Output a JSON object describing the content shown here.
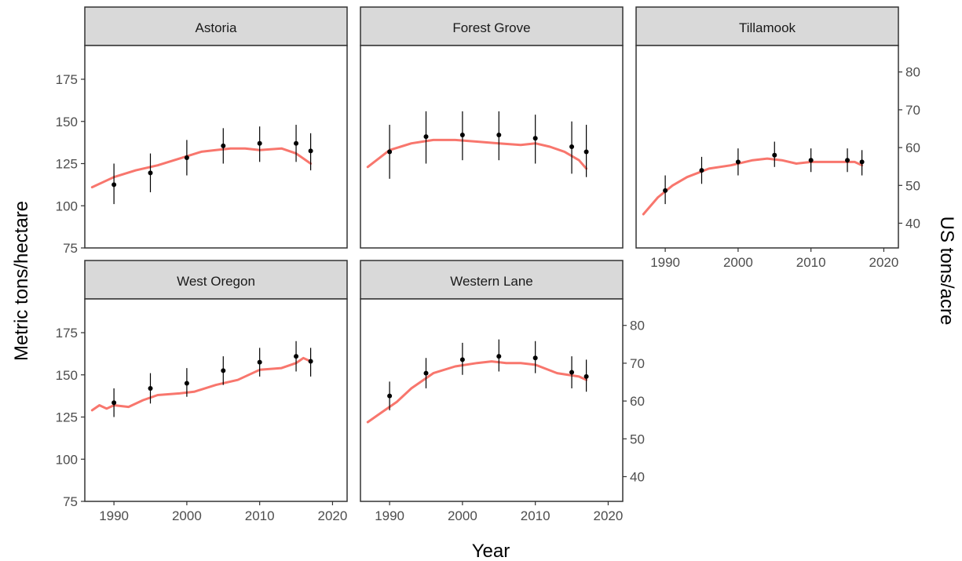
{
  "chart_data": {
    "type": "line",
    "xlabel": "Year",
    "ylabel": "Metric tons/hectare",
    "ylabel_secondary": "US tons/acre",
    "xlim": [
      1986,
      2022
    ],
    "ylim": [
      75,
      195
    ],
    "ylim_secondary": [
      33.46,
      87.0
    ],
    "x_ticks": [
      1990,
      2000,
      2010,
      2020
    ],
    "y_ticks": [
      75,
      100,
      125,
      150,
      175
    ],
    "y_ticks_secondary": [
      40,
      50,
      60,
      70,
      80
    ],
    "colors": {
      "line": "#f8766d",
      "points": "#000000",
      "strip": "#d9d9d9",
      "border": "#333333"
    },
    "panels": [
      {
        "title": "Astoria",
        "line": {
          "x": [
            1987,
            1990,
            1993,
            1996,
            1999,
            2002,
            2004,
            2006,
            2008,
            2010,
            2013,
            2015,
            2017
          ],
          "y": [
            111,
            117,
            121,
            124,
            128,
            132,
            133,
            134,
            134,
            133,
            134,
            131,
            125
          ]
        },
        "points": [
          {
            "x": 1990,
            "y": 112.5,
            "lo": 101,
            "hi": 125
          },
          {
            "x": 1995,
            "y": 119.5,
            "lo": 108,
            "hi": 131
          },
          {
            "x": 2000,
            "y": 128.5,
            "lo": 118,
            "hi": 139
          },
          {
            "x": 2005,
            "y": 135.5,
            "lo": 125,
            "hi": 146
          },
          {
            "x": 2010,
            "y": 137,
            "lo": 126,
            "hi": 147
          },
          {
            "x": 2015,
            "y": 137,
            "lo": 126,
            "hi": 148
          },
          {
            "x": 2017,
            "y": 132.5,
            "lo": 121,
            "hi": 143
          }
        ]
      },
      {
        "title": "Forest Grove",
        "line": {
          "x": [
            1987,
            1990,
            1993,
            1996,
            1999,
            2002,
            2005,
            2008,
            2010,
            2012,
            2014,
            2016,
            2017
          ],
          "y": [
            123,
            133,
            137,
            139,
            139,
            138,
            137,
            136,
            137,
            135,
            132,
            127,
            122
          ]
        },
        "points": [
          {
            "x": 1990,
            "y": 132,
            "lo": 116,
            "hi": 148
          },
          {
            "x": 1995,
            "y": 141,
            "lo": 125,
            "hi": 156
          },
          {
            "x": 2000,
            "y": 142,
            "lo": 127,
            "hi": 156
          },
          {
            "x": 2005,
            "y": 142,
            "lo": 127,
            "hi": 156
          },
          {
            "x": 2010,
            "y": 140,
            "lo": 125,
            "hi": 154
          },
          {
            "x": 2015,
            "y": 135,
            "lo": 119,
            "hi": 150
          },
          {
            "x": 2017,
            "y": 132,
            "lo": 117,
            "hi": 148
          }
        ]
      },
      {
        "title": "Tillamook",
        "line": {
          "x": [
            1987,
            1989,
            1991,
            1993,
            1996,
            1999,
            2002,
            2004,
            2006,
            2008,
            2010,
            2013,
            2016,
            2017
          ],
          "y": [
            95,
            105,
            112,
            117,
            122,
            124,
            127,
            128,
            127,
            125,
            126,
            126,
            126,
            124
          ]
        },
        "points": [
          {
            "x": 1990,
            "y": 109,
            "lo": 101,
            "hi": 118
          },
          {
            "x": 1995,
            "y": 121,
            "lo": 113,
            "hi": 129
          },
          {
            "x": 2000,
            "y": 126,
            "lo": 118,
            "hi": 134
          },
          {
            "x": 2005,
            "y": 130,
            "lo": 123,
            "hi": 138
          },
          {
            "x": 2010,
            "y": 127,
            "lo": 120,
            "hi": 134
          },
          {
            "x": 2015,
            "y": 127,
            "lo": 120,
            "hi": 134
          },
          {
            "x": 2017,
            "y": 126,
            "lo": 118,
            "hi": 133
          }
        ]
      },
      {
        "title": "West Oregon",
        "line": {
          "x": [
            1987,
            1988,
            1989,
            1990,
            1992,
            1994,
            1996,
            1999,
            2001,
            2004,
            2007,
            2010,
            2013,
            2015,
            2016,
            2017
          ],
          "y": [
            129,
            132,
            130,
            132,
            131,
            135,
            138,
            139,
            140,
            144,
            147,
            153,
            154,
            157,
            160,
            158
          ]
        },
        "points": [
          {
            "x": 1990,
            "y": 133.5,
            "lo": 125,
            "hi": 142
          },
          {
            "x": 1995,
            "y": 142,
            "lo": 133,
            "hi": 151
          },
          {
            "x": 2000,
            "y": 145,
            "lo": 137,
            "hi": 154
          },
          {
            "x": 2005,
            "y": 152.5,
            "lo": 144,
            "hi": 161
          },
          {
            "x": 2010,
            "y": 157.5,
            "lo": 149,
            "hi": 166
          },
          {
            "x": 2015,
            "y": 161,
            "lo": 152,
            "hi": 170
          },
          {
            "x": 2017,
            "y": 158,
            "lo": 149,
            "hi": 166
          }
        ]
      },
      {
        "title": "Western Lane",
        "line": {
          "x": [
            1987,
            1989,
            1991,
            1993,
            1996,
            1999,
            2002,
            2004,
            2006,
            2008,
            2010,
            2013,
            2016,
            2017
          ],
          "y": [
            122,
            128,
            134,
            142,
            151,
            155,
            157,
            158,
            157,
            157,
            156,
            151,
            149,
            147
          ]
        },
        "points": [
          {
            "x": 1990,
            "y": 137.5,
            "lo": 129,
            "hi": 146
          },
          {
            "x": 1995,
            "y": 151,
            "lo": 142,
            "hi": 160
          },
          {
            "x": 2000,
            "y": 159,
            "lo": 150,
            "hi": 169
          },
          {
            "x": 2005,
            "y": 161,
            "lo": 152,
            "hi": 171
          },
          {
            "x": 2010,
            "y": 160,
            "lo": 151,
            "hi": 170
          },
          {
            "x": 2015,
            "y": 151.5,
            "lo": 142,
            "hi": 161
          },
          {
            "x": 2017,
            "y": 149,
            "lo": 140,
            "hi": 159
          }
        ]
      }
    ]
  }
}
